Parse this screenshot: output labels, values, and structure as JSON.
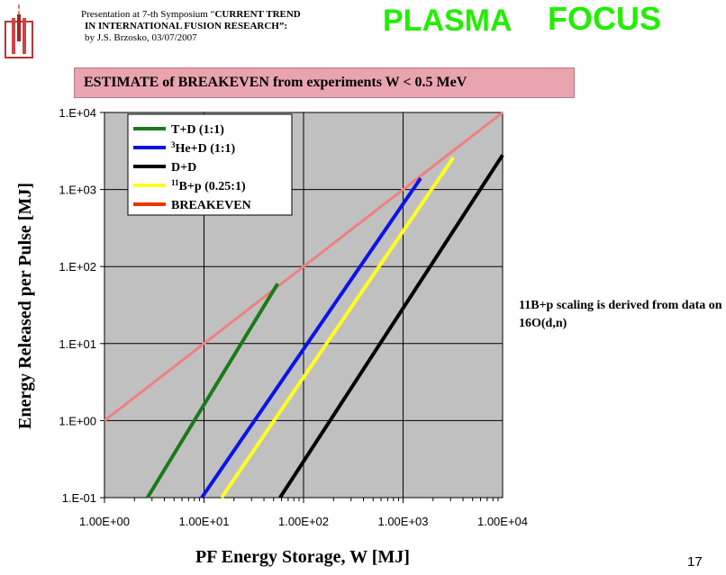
{
  "header": {
    "line1_prefix": "Presentation at 7-th Symposium “",
    "line1_bold": "CURRENT TREND",
    "line2_bold": "IN INTERNATIONAL FUSION RESEARCH",
    "line2_suffix": "”:",
    "line3": "by J.S. Brzosko,  03/07/2007"
  },
  "brand": {
    "word1": "PLASMA",
    "word2": "FOCUS",
    "color": "#22ee00"
  },
  "banner": {
    "text": "ESTIMATE of BREAKEVEN from experiments W < 0.5 MeV",
    "background": "#e9a4b0"
  },
  "note": {
    "text": "11B+p scaling is derived from data on 16O(d,n)"
  },
  "slide_number": "17",
  "chart_data": {
    "type": "line",
    "xlabel": "PF Energy Storage,  W [MJ]",
    "ylabel": "Energy Released per Pulse  [MJ]",
    "xscale": "log",
    "yscale": "log",
    "xlim": [
      1,
      10000
    ],
    "ylim": [
      0.1,
      10000
    ],
    "xticks": [
      1,
      10,
      100,
      1000,
      10000
    ],
    "xtick_labels": [
      "1.00E+00",
      "1.00E+01",
      "1.00E+02",
      "1.00E+03",
      "1.00E+04"
    ],
    "yticks": [
      0.1,
      1,
      10,
      100,
      1000,
      10000
    ],
    "ytick_labels": [
      "1.E-01",
      "1.E+00",
      "1.E+01",
      "1.E+02",
      "1.E+03",
      "1.E+04"
    ],
    "grid": true,
    "plot_background": "#c0c0c0",
    "legend_position": "top-left",
    "series": [
      {
        "name": "T+D (1:1)",
        "legend_prefix": "",
        "legend_super": "",
        "legend_rest": "T+D (1:1)",
        "color": "#1a7a1a",
        "x": [
          2.7,
          55
        ],
        "y": [
          0.1,
          60
        ]
      },
      {
        "name": "3He+D (1:1)",
        "legend_prefix": "",
        "legend_super": "3",
        "legend_rest": "He+D (1:1)",
        "color": "#0a14e8",
        "x": [
          9.5,
          1500
        ],
        "y": [
          0.1,
          1400
        ]
      },
      {
        "name": "D+D",
        "legend_prefix": "",
        "legend_super": "",
        "legend_rest": "D+D",
        "color": "#000000",
        "x": [
          58,
          10000
        ],
        "y": [
          0.1,
          2800
        ]
      },
      {
        "name": "11B+p (0.25:1)",
        "legend_prefix": "",
        "legend_super": "11",
        "legend_rest": "B+p (0.25:1)",
        "color": "#ffff22",
        "x": [
          15,
          3200
        ],
        "y": [
          0.1,
          2600
        ]
      },
      {
        "name": "BREAKEVEN",
        "legend_prefix": "",
        "legend_super": "",
        "legend_rest": "BREAKEVEN",
        "color": "#f08080",
        "legend_color": "#ee3300",
        "x": [
          1,
          10000
        ],
        "y": [
          1,
          10000
        ]
      }
    ]
  }
}
